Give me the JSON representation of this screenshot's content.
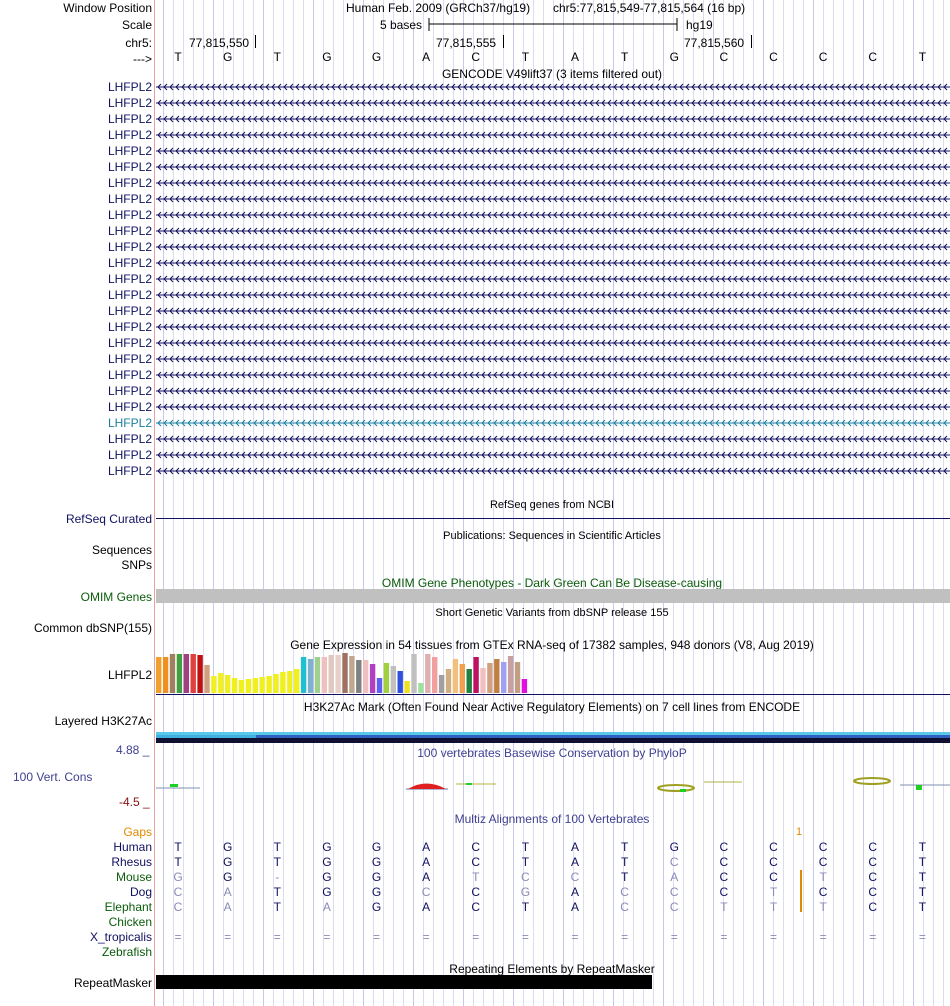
{
  "header": {
    "window_position_label": "Window Position",
    "scale_label": "Scale",
    "chrom_label": "chr5:",
    "strand_label": "--->",
    "assembly_text": "Human Feb. 2009 (GRCh37/hg19)",
    "position_text": "chr5:77,815,549-77,815,564 (16 bp)",
    "scale_bar_text": "5 bases",
    "db_text": "hg19",
    "coord_ticks": [
      "77,815,550",
      "77,815,555",
      "77,815,560"
    ],
    "bases": [
      "T",
      "G",
      "T",
      "G",
      "G",
      "A",
      "C",
      "T",
      "A",
      "T",
      "G",
      "C",
      "C",
      "C",
      "C",
      "T"
    ]
  },
  "gencode": {
    "title": "GENCODE V49lift37 (3 items filtered out)",
    "genes": [
      "LHFPL2",
      "LHFPL2",
      "LHFPL2",
      "LHFPL2",
      "LHFPL2",
      "LHFPL2",
      "LHFPL2",
      "LHFPL2",
      "LHFPL2",
      "LHFPL2",
      "LHFPL2",
      "LHFPL2",
      "LHFPL2",
      "LHFPL2",
      "LHFPL2",
      "LHFPL2",
      "LHFPL2",
      "LHFPL2",
      "LHFPL2",
      "LHFPL2",
      "LHFPL2",
      "LHFPL2",
      "LHFPL2",
      "LHFPL2",
      "LHFPL2"
    ],
    "highlight_index": 21,
    "gene_color": "#101060",
    "highlight_color": "#1a7fa0"
  },
  "refseq": {
    "title": "RefSeq genes from NCBI",
    "label": "RefSeq Curated"
  },
  "publications": {
    "title": "Publications: Sequences in Scientific Articles",
    "labels": [
      "Sequences",
      "SNPs"
    ]
  },
  "omim": {
    "title": "OMIM Gene Phenotypes - Dark Green Can Be Disease-causing",
    "label": "OMIM Genes",
    "color": "#0a5c0a"
  },
  "dbsnp": {
    "title": "Short Genetic Variants from dbSNP release 155",
    "label": "Common dbSNP(155)"
  },
  "gtex": {
    "title": "Gene Expression in 54 tissues from GTEx RNA-seq of 17382 samples, 948 donors (V8, Aug 2019)",
    "label": "LHFPL2",
    "values": [
      36,
      36,
      39,
      39,
      39,
      39,
      38,
      28,
      17,
      20,
      18,
      15,
      13,
      14,
      15,
      16,
      17,
      19,
      21,
      22,
      24,
      36,
      34,
      36,
      36,
      38,
      38,
      40,
      37,
      33,
      33,
      29,
      15,
      30,
      27,
      22,
      12,
      39,
      10,
      39,
      36,
      18,
      24,
      34,
      29,
      24,
      36,
      25,
      30,
      34,
      31,
      37,
      31,
      14
    ],
    "colors": [
      "#f0a030",
      "#f09020",
      "#a08060",
      "#40a040",
      "#a04080",
      "#e04040",
      "#c01010",
      "#d0a080",
      "#f0f020",
      "#f0f020",
      "#f0f020",
      "#f0f020",
      "#f0f020",
      "#f0f020",
      "#f0f020",
      "#f0f020",
      "#f0f020",
      "#f0f020",
      "#f0f020",
      "#f0f020",
      "#f0f020",
      "#20c0d0",
      "#80b0d0",
      "#a0d090",
      "#f0c0c0",
      "#e0c8c0",
      "#e8d0c8",
      "#a07060",
      "#c0a890",
      "#808080",
      "#f0c0c0",
      "#b040c0",
      "#6060f0",
      "#a0d040",
      "#c0c0c0",
      "#3050e0",
      "#f0e020",
      "#c0c0c0",
      "#a0e0a0",
      "#e0b0b0",
      "#f0a0a0",
      "#a0a0a0",
      "#d0b080",
      "#f0c080",
      "#f0a050",
      "#208040",
      "#c01060",
      "#f0c0c0",
      "#d0a080",
      "#c08040",
      "#a0a0f0",
      "#c8a0a0",
      "#c0a080",
      "#e010e0"
    ]
  },
  "h3k27ac": {
    "title": "H3K27Ac Mark (Often Found Near Active Regulatory Elements) on 7 cell lines from ENCODE",
    "label": "Layered H3K27Ac"
  },
  "phylop": {
    "title": "100 vertebrates Basewise Conservation by PhyloP",
    "label": "100 Vert. Cons",
    "ymax": "4.88 _",
    "ymin": "-4.5 _",
    "color": "#404090",
    "min_color": "#8a1010"
  },
  "multiz": {
    "title": "Multiz Alignments of 100 Vertebrates",
    "gaps_label": "Gaps",
    "gap_count": "1",
    "gaps_color": "#e08a00",
    "species": [
      {
        "name": "Human",
        "color": "#101060",
        "bases": [
          "T",
          "G",
          "T",
          "G",
          "G",
          "A",
          "C",
          "T",
          "A",
          "T",
          "G",
          "C",
          "C",
          "C",
          "C",
          "T"
        ],
        "faded": []
      },
      {
        "name": "Rhesus",
        "color": "#101060",
        "bases": [
          "T",
          "G",
          "T",
          "G",
          "G",
          "A",
          "C",
          "T",
          "A",
          "T",
          "C",
          "C",
          "C",
          "C",
          "C",
          "T"
        ],
        "faded": [
          10
        ]
      },
      {
        "name": "Mouse",
        "color": "#0a5c0a",
        "bases": [
          "G",
          "G",
          "-",
          "G",
          "G",
          "A",
          "T",
          "C",
          "C",
          "T",
          "A",
          "C",
          "C",
          "T",
          "C",
          "T"
        ],
        "faded": [
          0,
          2,
          6,
          7,
          8,
          10,
          13
        ]
      },
      {
        "name": "Dog",
        "color": "#101060",
        "bases": [
          "C",
          "A",
          "T",
          "G",
          "G",
          "C",
          "C",
          "G",
          "A",
          "C",
          "C",
          "C",
          "T",
          "C",
          "C",
          "T"
        ],
        "faded": [
          0,
          1,
          5,
          7,
          9,
          10,
          12
        ]
      },
      {
        "name": "Elephant",
        "color": "#0a5c0a",
        "bases": [
          "C",
          "A",
          "T",
          "A",
          "G",
          "A",
          "C",
          "T",
          "A",
          "C",
          "C",
          "T",
          "T",
          "T",
          "C",
          "T"
        ],
        "faded": [
          0,
          1,
          3,
          9,
          10,
          11,
          12,
          13
        ]
      },
      {
        "name": "Chicken",
        "color": "#0a5c0a",
        "bases": [],
        "faded": []
      },
      {
        "name": "X_tropicalis",
        "color": "#101060",
        "bases": [
          "=",
          "=",
          "=",
          "=",
          "=",
          "=",
          "=",
          "=",
          "=",
          "=",
          "=",
          "=",
          "=",
          "=",
          "=",
          "="
        ],
        "faded": [
          0,
          1,
          2,
          3,
          4,
          5,
          6,
          7,
          8,
          9,
          10,
          11,
          12,
          13,
          14,
          15
        ]
      },
      {
        "name": "Zebrafish",
        "color": "#0a5c0a",
        "bases": [],
        "faded": []
      }
    ]
  },
  "repeatmasker": {
    "title": "Repeating Elements by RepeatMasker",
    "label": "RepeatMasker"
  }
}
